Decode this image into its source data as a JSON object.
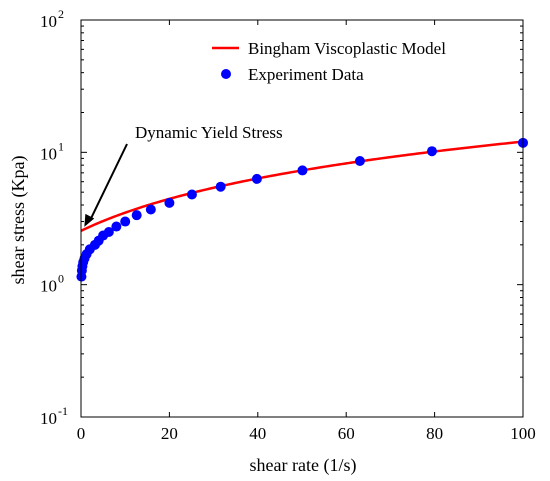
{
  "chart_data": {
    "type": "line",
    "xlabel": "shear rate (1/s)",
    "ylabel": "shear stress (Kpa)",
    "xlim": [
      0,
      100
    ],
    "ylim": [
      0.1,
      100
    ],
    "yscale": "log",
    "grid": false,
    "legend_position": "top-right",
    "x_ticks": [
      0,
      20,
      40,
      60,
      80,
      100
    ],
    "y_ticks": [
      {
        "value": 0.1,
        "base": "10",
        "exp": "-1"
      },
      {
        "value": 1,
        "base": "10",
        "exp": "0"
      },
      {
        "value": 10,
        "base": "10",
        "exp": "1"
      },
      {
        "value": 100,
        "base": "10",
        "exp": "2"
      }
    ],
    "series": [
      {
        "name": "Bingham Viscoplastic Model",
        "kind": "line",
        "color": "#ff0000",
        "intercept": 2.55,
        "slope": 0.095
      },
      {
        "name": "Experiment Data",
        "kind": "scatter",
        "color": "#0000ff",
        "points": [
          {
            "x": 0.1,
            "y": 1.15
          },
          {
            "x": 0.2,
            "y": 1.28
          },
          {
            "x": 0.32,
            "y": 1.38
          },
          {
            "x": 0.5,
            "y": 1.48
          },
          {
            "x": 0.8,
            "y": 1.58
          },
          {
            "x": 1.26,
            "y": 1.7
          },
          {
            "x": 2.0,
            "y": 1.85
          },
          {
            "x": 3.16,
            "y": 2.0
          },
          {
            "x": 4.0,
            "y": 2.15
          },
          {
            "x": 5.0,
            "y": 2.35
          },
          {
            "x": 6.3,
            "y": 2.5
          },
          {
            "x": 8.0,
            "y": 2.75
          },
          {
            "x": 10.0,
            "y": 3.0
          },
          {
            "x": 12.6,
            "y": 3.35
          },
          {
            "x": 15.8,
            "y": 3.7
          },
          {
            "x": 20.0,
            "y": 4.15
          },
          {
            "x": 25.1,
            "y": 4.8
          },
          {
            "x": 31.6,
            "y": 5.5
          },
          {
            "x": 39.8,
            "y": 6.3
          },
          {
            "x": 50.1,
            "y": 7.3
          },
          {
            "x": 63.1,
            "y": 8.6
          },
          {
            "x": 79.4,
            "y": 10.2
          },
          {
            "x": 100.0,
            "y": 11.8
          }
        ]
      }
    ],
    "annotations": [
      {
        "text": "Dynamic Yield Stress",
        "arrow_to": {
          "x": 0.3,
          "y": 2.55
        }
      }
    ]
  }
}
